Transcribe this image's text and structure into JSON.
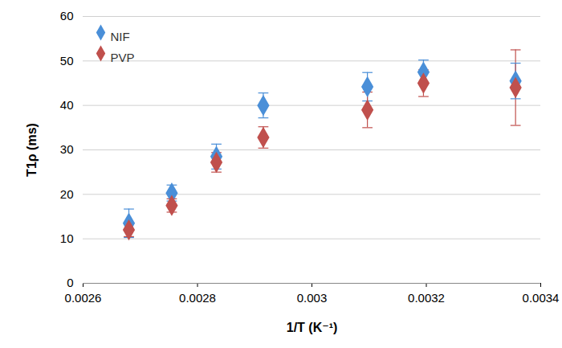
{
  "chart_data": {
    "type": "scatter",
    "x_label": "1/T (K⁻¹)",
    "y_label": "T1ρ (ms)",
    "x": [
      0.00268,
      0.002755,
      0.002833,
      0.002915,
      0.003097,
      0.003195,
      0.003356
    ],
    "series": [
      {
        "name": "NIF",
        "color": "#4a8fd8",
        "marker": "diamond",
        "values": [
          13.5,
          20.3,
          28.5,
          40.0,
          44.2,
          47.5,
          45.5
        ],
        "errors": [
          3.2,
          1.8,
          2.8,
          2.8,
          3.2,
          2.7,
          4.0
        ]
      },
      {
        "name": "PVP",
        "color": "#c0504d",
        "marker": "diamond",
        "values": [
          12.0,
          17.5,
          27.2,
          32.8,
          39.0,
          45.0,
          44.0
        ],
        "errors": [
          1.5,
          1.5,
          2.2,
          2.4,
          4.0,
          3.0,
          8.5
        ]
      }
    ],
    "xlim": [
      0.0026,
      0.0034
    ],
    "xticks": [
      0.0026,
      0.0028,
      0.003,
      0.0032,
      0.0034
    ],
    "ylim": [
      0,
      60
    ],
    "yticks": [
      0,
      10,
      20,
      30,
      40,
      50,
      60
    ],
    "grid": true,
    "legend": "top-left"
  }
}
